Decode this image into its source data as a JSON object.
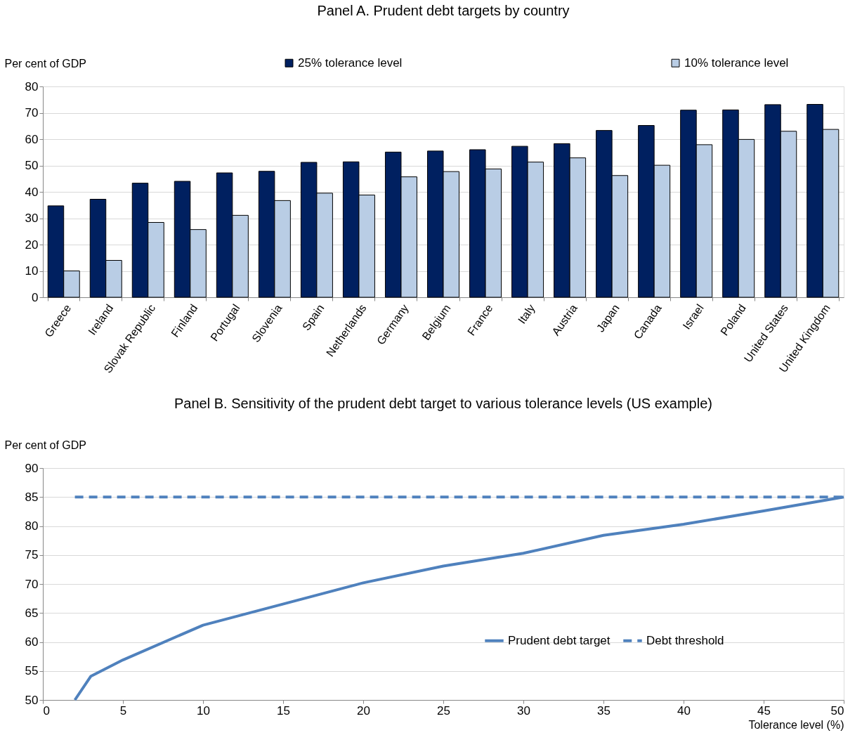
{
  "chart_data": [
    {
      "type": "bar",
      "title": "Panel A.  Prudent debt targets by country",
      "ylabel": "Per cent of GDP",
      "categories": [
        "Greece",
        "Ireland",
        "Slovak Republic",
        "Finland",
        "Portugal",
        "Slovenia",
        "Spain",
        "Netherlands",
        "Germany",
        "Belgium",
        "France",
        "Italy",
        "Austria",
        "Japan",
        "Canada",
        "Israel",
        "Poland",
        "United States",
        "United Kingdom"
      ],
      "series": [
        {
          "name": "25% tolerance level",
          "color": "#002060",
          "values": [
            34.7,
            37.2,
            43.3,
            44.0,
            47.2,
            47.8,
            51.2,
            51.4,
            55.1,
            55.5,
            56.0,
            57.3,
            58.3,
            63.3,
            65.2,
            71.0,
            71.1,
            73.1,
            73.2
          ]
        },
        {
          "name": "10% tolerance level",
          "color": "#b9cde5",
          "values": [
            10.0,
            14.0,
            28.4,
            25.7,
            31.1,
            36.7,
            39.5,
            38.8,
            45.7,
            47.7,
            48.7,
            51.3,
            52.9,
            46.2,
            50.1,
            57.9,
            59.9,
            63.0,
            63.7
          ]
        }
      ],
      "ylim": [
        0,
        80
      ],
      "yticks": [
        0,
        10,
        20,
        30,
        40,
        50,
        60,
        70,
        80
      ],
      "grid": "y",
      "legend": "top"
    },
    {
      "type": "line",
      "title": "Panel B. Sensitivity of the prudent debt target to various tolerance levels (US example)",
      "ylabel": "Per cent of GDP",
      "xlabel": "Tolerance level (%)",
      "series": [
        {
          "name": "Prudent debt target",
          "color": "#4f81bd",
          "line_style": "solid",
          "x": [
            2,
            3,
            5,
            10,
            20,
            25,
            30,
            35,
            40,
            45,
            50
          ],
          "values": [
            50.0,
            54.1,
            56.9,
            62.9,
            70.2,
            73.1,
            75.3,
            78.4,
            80.3,
            82.6,
            85.0
          ]
        },
        {
          "name": "Debt threshold",
          "color": "#4f81bd",
          "line_style": "dashed",
          "x": [
            2,
            50
          ],
          "values": [
            85,
            85
          ]
        }
      ],
      "xlim": [
        0,
        50
      ],
      "xticks": [
        0,
        5,
        10,
        15,
        20,
        25,
        30,
        35,
        40,
        45,
        50
      ],
      "ylim": [
        50,
        90
      ],
      "yticks": [
        50,
        55,
        60,
        65,
        70,
        75,
        80,
        85,
        90
      ],
      "grid": "y",
      "legend": "right",
      "marker": "none"
    }
  ]
}
